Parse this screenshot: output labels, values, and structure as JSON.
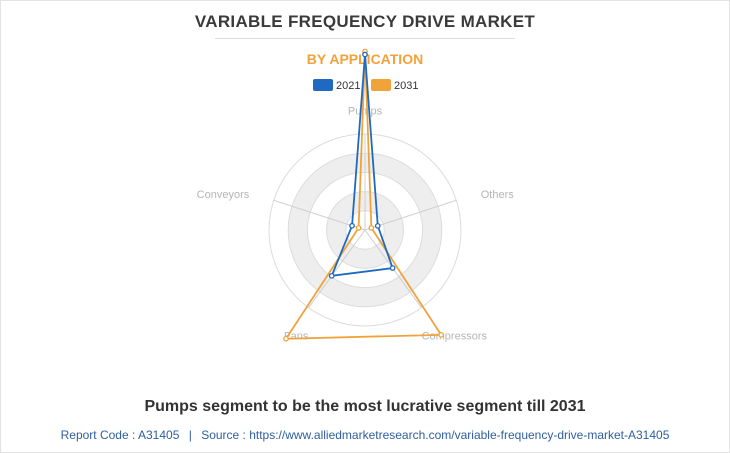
{
  "page": {
    "title": "VARIABLE FREQUENCY DRIVE MARKET",
    "caption": "Pumps segment to be the most lucrative segment till 2031",
    "footer": {
      "report_code_label": "Report Code : A31405",
      "separator": "|",
      "source_label": "Source : https://www.alliedmarketresearch.com/variable-frequency-drive-market-A31405"
    }
  },
  "chart_data": {
    "type": "radar",
    "title": "BY APPLICATION",
    "categories": [
      "Pumps",
      "Others",
      "Compressors",
      "Fans",
      "Conveyors"
    ],
    "series": [
      {
        "name": "2021",
        "color": "#1f6ac0",
        "values": [
          9.14,
          0.7,
          2.45,
          2.95,
          0.71
        ]
      },
      {
        "name": "2031",
        "color": "#f0a33a",
        "values": [
          9.3,
          0.35,
          6.75,
          7.0,
          0.35
        ]
      }
    ],
    "radial_range": [
      0,
      5
    ],
    "rings": 5,
    "grid": true,
    "legend_position": "top"
  }
}
